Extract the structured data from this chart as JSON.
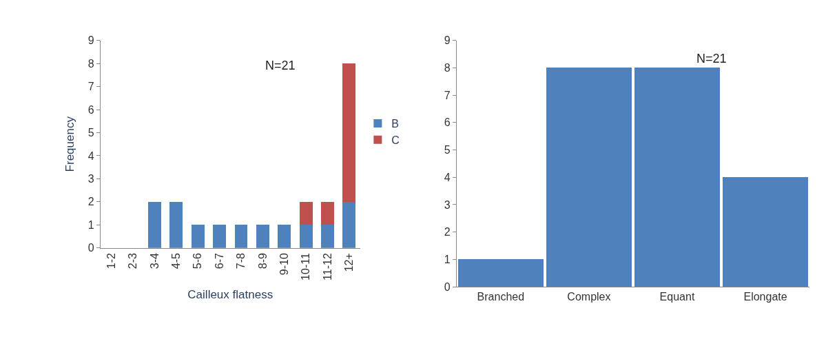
{
  "chart_data": [
    {
      "type": "bar",
      "stacked": true,
      "xlabel": "Cailleux flatness",
      "ylabel": "Frequency",
      "categories": [
        "1-2",
        "2-3",
        "3-4",
        "4-5",
        "5-6",
        "6-7",
        "7-8",
        "8-9",
        "9-10",
        "10-11",
        "11-12",
        "12+"
      ],
      "series": [
        {
          "name": "B",
          "color": "#4f81bd",
          "values": [
            0,
            0,
            2,
            2,
            1,
            1,
            1,
            1,
            1,
            1,
            1,
            2
          ]
        },
        {
          "name": "C",
          "color": "#c0504d",
          "values": [
            0,
            0,
            0,
            0,
            0,
            0,
            0,
            0,
            0,
            1,
            1,
            6
          ]
        }
      ],
      "ylim": [
        0,
        9
      ],
      "yticks": [
        0,
        1,
        2,
        3,
        4,
        5,
        6,
        7,
        8,
        9
      ],
      "legend": "right",
      "annotations": [
        "N=21"
      ]
    },
    {
      "type": "bar",
      "categories": [
        "Branched",
        "Complex",
        "Equant",
        "Elongate"
      ],
      "values": [
        1,
        8,
        8,
        4
      ],
      "color": "#4f81bd",
      "ylim": [
        0,
        9
      ],
      "yticks": [
        0,
        1,
        2,
        3,
        4,
        5,
        6,
        7,
        8,
        9
      ],
      "annotations": [
        "N=21"
      ]
    }
  ]
}
